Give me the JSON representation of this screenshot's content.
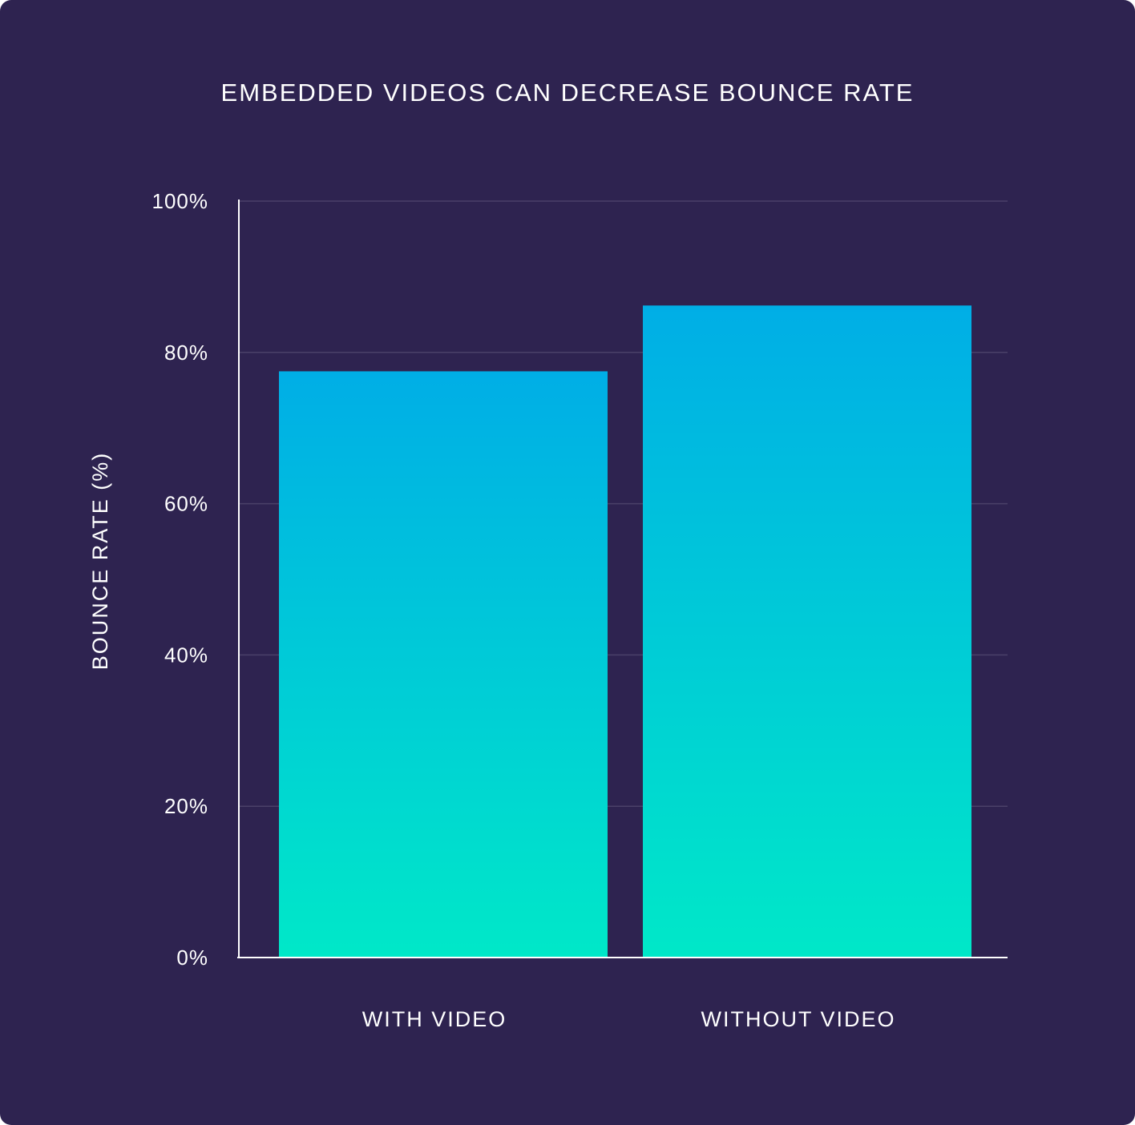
{
  "chart_data": {
    "type": "bar",
    "title": "EMBEDDED VIDEOS CAN DECREASE BOUNCE RATE",
    "xlabel": "",
    "ylabel": "BOUNCE RATE (%)",
    "categories": [
      "WITH VIDEO",
      "WITHOUT VIDEO"
    ],
    "values": [
      77.5,
      86.2
    ],
    "ylim": [
      0,
      100
    ],
    "yticks": [
      0,
      20,
      40,
      60,
      80,
      100
    ],
    "ytick_labels": [
      "0%",
      "20%",
      "40%",
      "60%",
      "80%",
      "100%"
    ],
    "grid": true,
    "legend": "none",
    "colors": {
      "background": "#2e2350",
      "bar_top": "#00aee6",
      "bar_bottom": "#00e8c8",
      "gridline": "#4a4068",
      "axis": "#ffffff",
      "text": "#ffffff"
    }
  }
}
